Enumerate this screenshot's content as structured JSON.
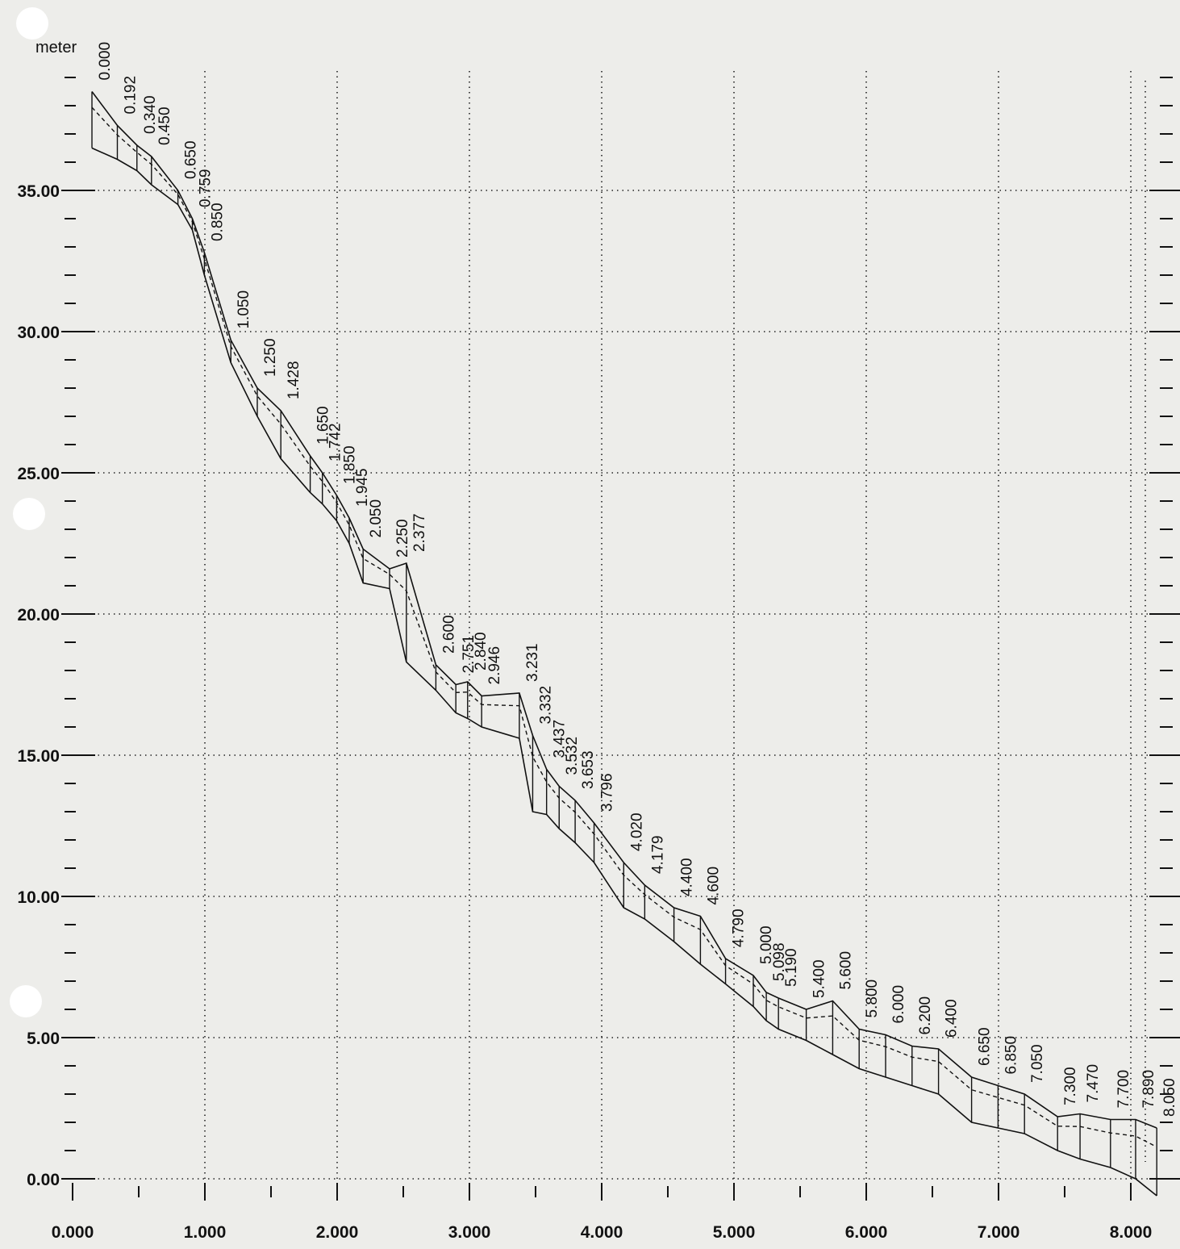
{
  "chart_data": {
    "type": "line",
    "ylabel": "meter",
    "xlim": [
      0,
      8.3
    ],
    "ylim": [
      0,
      40
    ],
    "x_ticks": [
      "0.000",
      "1.000",
      "2.000",
      "3.000",
      "4.000",
      "5.000",
      "6.000",
      "7.000",
      "8.000"
    ],
    "y_ticks": [
      "0.00",
      "5.00",
      "10.00",
      "15.00",
      "20.00",
      "25.00",
      "30.00",
      "35.00"
    ],
    "grid": true,
    "stations": [
      {
        "label": "0.000",
        "x": 0.0,
        "top": 38.5,
        "bed": 36.5
      },
      {
        "label": "0.192",
        "x": 0.192,
        "top": 37.3,
        "bed": 36.1
      },
      {
        "label": "0.340",
        "x": 0.34,
        "top": 36.6,
        "bed": 35.7
      },
      {
        "label": "0.450",
        "x": 0.45,
        "top": 36.2,
        "bed": 35.2
      },
      {
        "label": "0.650",
        "x": 0.65,
        "top": 35.0,
        "bed": 34.5
      },
      {
        "label": "0.759",
        "x": 0.759,
        "top": 34.0,
        "bed": 33.6
      },
      {
        "label": "0.850",
        "x": 0.85,
        "top": 32.8,
        "bed": 32.0
      },
      {
        "label": "1.050",
        "x": 1.05,
        "top": 29.7,
        "bed": 28.9
      },
      {
        "label": "1.250",
        "x": 1.25,
        "top": 28.0,
        "bed": 27.0
      },
      {
        "label": "1.428",
        "x": 1.428,
        "top": 27.2,
        "bed": 25.5
      },
      {
        "label": "1.650",
        "x": 1.65,
        "top": 25.6,
        "bed": 24.3
      },
      {
        "label": "1.742",
        "x": 1.742,
        "top": 25.0,
        "bed": 23.9
      },
      {
        "label": "1.850",
        "x": 1.85,
        "top": 24.2,
        "bed": 23.3
      },
      {
        "label": "1.945",
        "x": 1.945,
        "top": 23.4,
        "bed": 22.5
      },
      {
        "label": "2.050",
        "x": 2.05,
        "top": 22.3,
        "bed": 21.1
      },
      {
        "label": "2.250",
        "x": 2.25,
        "top": 21.6,
        "bed": 20.9
      },
      {
        "label": "2.377",
        "x": 2.377,
        "top": 21.8,
        "bed": 18.3
      },
      {
        "label": "2.600",
        "x": 2.6,
        "top": 18.2,
        "bed": 17.3
      },
      {
        "label": "2.751",
        "x": 2.751,
        "top": 17.5,
        "bed": 16.5
      },
      {
        "label": "2.840",
        "x": 2.84,
        "top": 17.6,
        "bed": 16.3
      },
      {
        "label": "2.946",
        "x": 2.946,
        "top": 17.1,
        "bed": 16.0
      },
      {
        "label": "3.231",
        "x": 3.231,
        "top": 17.2,
        "bed": 15.6
      },
      {
        "label": "3.332",
        "x": 3.332,
        "top": 15.7,
        "bed": 13.0
      },
      {
        "label": "3.437",
        "x": 3.437,
        "top": 14.5,
        "bed": 12.9
      },
      {
        "label": "3.532",
        "x": 3.532,
        "top": 13.9,
        "bed": 12.4
      },
      {
        "label": "3.653",
        "x": 3.653,
        "top": 13.4,
        "bed": 11.9
      },
      {
        "label": "3.796",
        "x": 3.796,
        "top": 12.6,
        "bed": 11.2
      },
      {
        "label": "4.020",
        "x": 4.02,
        "top": 11.2,
        "bed": 9.6
      },
      {
        "label": "4.179",
        "x": 4.179,
        "top": 10.4,
        "bed": 9.2
      },
      {
        "label": "4.400",
        "x": 4.4,
        "top": 9.6,
        "bed": 8.4
      },
      {
        "label": "4.600",
        "x": 4.6,
        "top": 9.3,
        "bed": 7.6
      },
      {
        "label": "4.790",
        "x": 4.79,
        "top": 7.8,
        "bed": 6.9
      },
      {
        "label": "5.000",
        "x": 5.0,
        "top": 7.2,
        "bed": 6.1
      },
      {
        "label": "5.098",
        "x": 5.098,
        "top": 6.6,
        "bed": 5.6
      },
      {
        "label": "5.190",
        "x": 5.19,
        "top": 6.4,
        "bed": 5.3
      },
      {
        "label": "5.400",
        "x": 5.4,
        "top": 6.0,
        "bed": 4.9
      },
      {
        "label": "5.600",
        "x": 5.6,
        "top": 6.3,
        "bed": 4.4
      },
      {
        "label": "5.800",
        "x": 5.8,
        "top": 5.3,
        "bed": 3.9
      },
      {
        "label": "6.000",
        "x": 6.0,
        "top": 5.1,
        "bed": 3.6
      },
      {
        "label": "6.200",
        "x": 6.2,
        "top": 4.7,
        "bed": 3.3
      },
      {
        "label": "6.400",
        "x": 6.4,
        "top": 4.6,
        "bed": 3.0
      },
      {
        "label": "6.650",
        "x": 6.65,
        "top": 3.6,
        "bed": 2.0
      },
      {
        "label": "6.850",
        "x": 6.85,
        "top": 3.3,
        "bed": 1.8
      },
      {
        "label": "7.050",
        "x": 7.05,
        "top": 3.0,
        "bed": 1.6
      },
      {
        "label": "7.300",
        "x": 7.3,
        "top": 2.2,
        "bed": 1.0
      },
      {
        "label": "7.470",
        "x": 7.47,
        "top": 2.3,
        "bed": 0.7
      },
      {
        "label": "7.700",
        "x": 7.7,
        "top": 2.1,
        "bed": 0.4
      },
      {
        "label": "7.890",
        "x": 7.89,
        "top": 2.1,
        "bed": 0.0
      },
      {
        "label": "8.050",
        "x": 8.05,
        "top": 1.8,
        "bed": -0.6
      }
    ]
  }
}
